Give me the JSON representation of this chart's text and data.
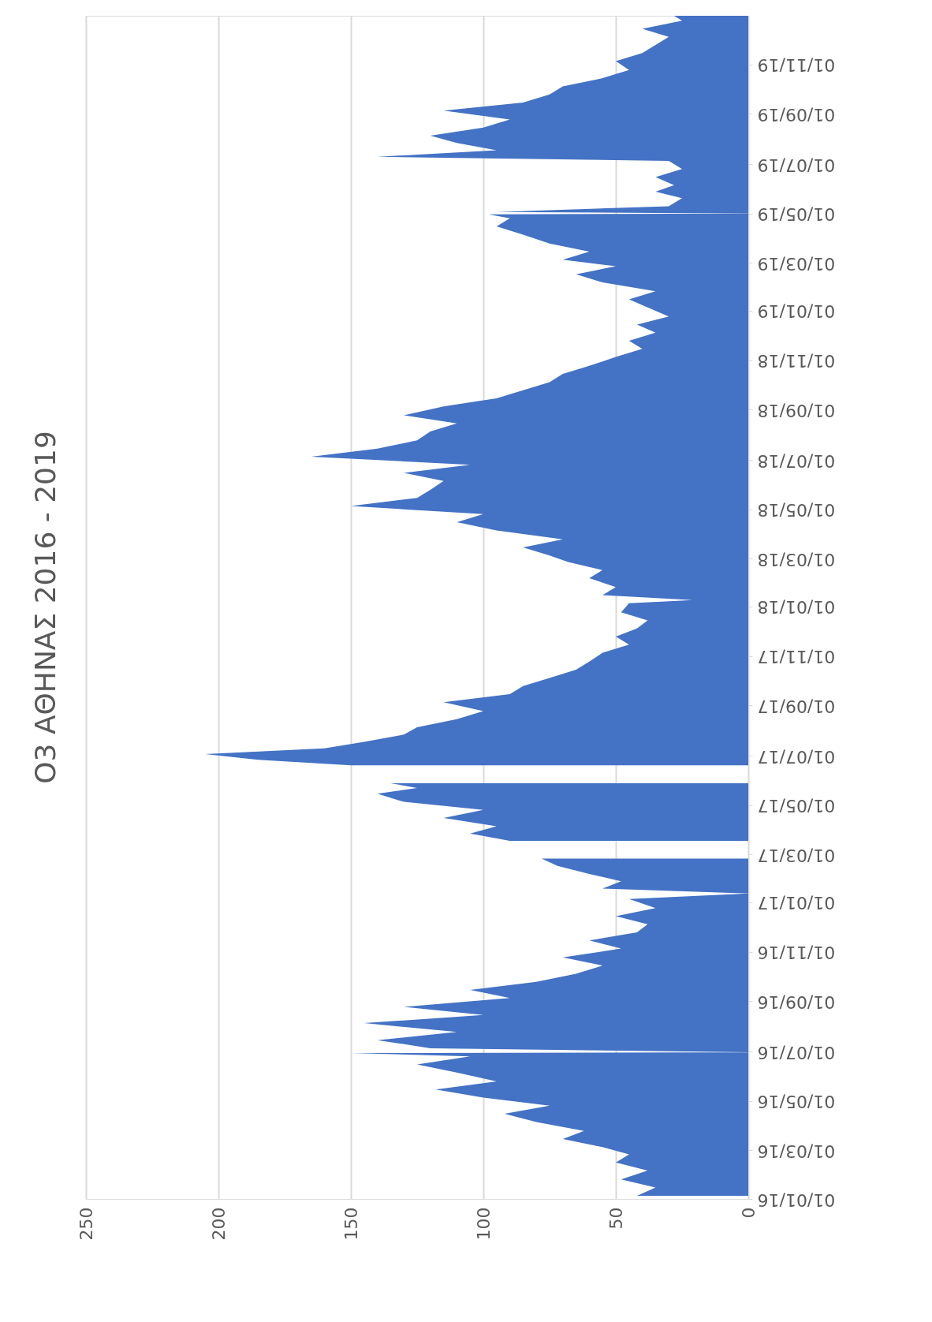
{
  "chart_data": {
    "type": "area",
    "title": "O3 ΑΘΗΝΑΣ 2016 - 2019",
    "series": [
      {
        "color": "#4472c4",
        "x": [
          "2016-01-05",
          "2016-01-15",
          "2016-01-25",
          "2016-02-05",
          "2016-02-15",
          "2016-02-25",
          "2016-03-05",
          "2016-03-15",
          "2016-03-25",
          "2016-04-05",
          "2016-04-15",
          "2016-04-25",
          "2016-05-05",
          "2016-05-15",
          "2016-05-25",
          "2016-06-05",
          "2016-06-15",
          "2016-06-25",
          "2016-06-29",
          "2016-06-30",
          "2016-07-05",
          "2016-07-15",
          "2016-07-25",
          "2016-08-05",
          "2016-08-15",
          "2016-08-25",
          "2016-09-05",
          "2016-09-15",
          "2016-09-25",
          "2016-10-05",
          "2016-10-15",
          "2016-10-25",
          "2016-11-05",
          "2016-11-15",
          "2016-11-25",
          "2016-12-05",
          "2016-12-15",
          "2016-12-25",
          "2017-01-05",
          "2017-01-12",
          "2017-01-18",
          "2017-01-27",
          "2017-02-05",
          "2017-02-15",
          "2017-02-24",
          "2017-03-05",
          "2017-03-12",
          "2017-03-18",
          "2017-03-27",
          "2017-04-05",
          "2017-04-15",
          "2017-04-25",
          "2017-05-05",
          "2017-05-15",
          "2017-05-22",
          "2017-05-28",
          "2017-06-05",
          "2017-06-12",
          "2017-06-19",
          "2017-06-26",
          "2017-07-03",
          "2017-07-10",
          "2017-07-18",
          "2017-07-27",
          "2017-08-05",
          "2017-08-15",
          "2017-08-25",
          "2017-09-05",
          "2017-09-15",
          "2017-09-25",
          "2017-10-05",
          "2017-10-15",
          "2017-10-25",
          "2017-11-05",
          "2017-11-15",
          "2017-11-25",
          "2017-12-05",
          "2017-12-15",
          "2017-12-25",
          "2018-01-05",
          "2018-01-09",
          "2018-01-15",
          "2018-01-25",
          "2018-02-05",
          "2018-02-15",
          "2018-02-25",
          "2018-03-05",
          "2018-03-15",
          "2018-03-25",
          "2018-04-05",
          "2018-04-15",
          "2018-04-25",
          "2018-05-05",
          "2018-05-15",
          "2018-05-25",
          "2018-06-05",
          "2018-06-15",
          "2018-06-25",
          "2018-07-05",
          "2018-07-15",
          "2018-07-25",
          "2018-08-05",
          "2018-08-15",
          "2018-08-25",
          "2018-09-05",
          "2018-09-15",
          "2018-09-25",
          "2018-10-05",
          "2018-10-15",
          "2018-10-25",
          "2018-11-05",
          "2018-11-15",
          "2018-11-25",
          "2018-12-05",
          "2018-12-15",
          "2018-12-25",
          "2019-01-05",
          "2019-01-15",
          "2019-01-25",
          "2019-02-05",
          "2019-02-15",
          "2019-02-25",
          "2019-03-05",
          "2019-03-15",
          "2019-03-25",
          "2019-04-05",
          "2019-04-15",
          "2019-04-25",
          "2019-04-30",
          "2019-05-01",
          "2019-05-03",
          "2019-05-10",
          "2019-05-20",
          "2019-05-28",
          "2019-06-05",
          "2019-06-15",
          "2019-06-25",
          "2019-07-05",
          "2019-07-10",
          "2019-07-18",
          "2019-07-27",
          "2019-08-05",
          "2019-08-15",
          "2019-08-25",
          "2019-09-05",
          "2019-09-15",
          "2019-09-25",
          "2019-10-05",
          "2019-10-15",
          "2019-10-25",
          "2019-11-05",
          "2019-11-15",
          "2019-11-25",
          "2019-12-05",
          "2019-12-15",
          "2019-12-25",
          "2019-12-31"
        ],
        "values": [
          42,
          35,
          48,
          38,
          50,
          45,
          55,
          70,
          62,
          80,
          92,
          75,
          100,
          118,
          95,
          110,
          125,
          105,
          150,
          0,
          120,
          140,
          110,
          145,
          100,
          130,
          90,
          105,
          80,
          65,
          55,
          70,
          48,
          60,
          42,
          38,
          50,
          35,
          45,
          0,
          55,
          48,
          60,
          72,
          78,
          null,
          null,
          90,
          105,
          95,
          115,
          100,
          130,
          140,
          125,
          135,
          null,
          null,
          150,
          185,
          205,
          160,
          145,
          130,
          125,
          110,
          100,
          115,
          90,
          85,
          75,
          65,
          60,
          55,
          45,
          50,
          42,
          38,
          48,
          45,
          21,
          55,
          50,
          60,
          55,
          68,
          75,
          85,
          70,
          95,
          110,
          100,
          150,
          125,
          120,
          115,
          130,
          105,
          165,
          140,
          125,
          120,
          110,
          130,
          115,
          95,
          85,
          75,
          70,
          60,
          50,
          40,
          45,
          35,
          42,
          30,
          38,
          45,
          35,
          55,
          65,
          50,
          70,
          60,
          75,
          85,
          95,
          90,
          98,
          0,
          95,
          30,
          25,
          35,
          28,
          35,
          25,
          30,
          140,
          95,
          110,
          120,
          100,
          90,
          115,
          85,
          75,
          70,
          55,
          45,
          50,
          40,
          35,
          30,
          40,
          25,
          28
        ]
      }
    ],
    "orientation": "horizontal",
    "ylim": [
      "2016-01-01",
      "2019-12-31"
    ],
    "yticks": [
      {
        "value": "2016-01-01",
        "label": "01/01/16"
      },
      {
        "value": "2016-03-01",
        "label": "01/03/16"
      },
      {
        "value": "2016-05-01",
        "label": "01/05/16"
      },
      {
        "value": "2016-07-01",
        "label": "01/07/16"
      },
      {
        "value": "2016-09-01",
        "label": "01/09/16"
      },
      {
        "value": "2016-11-01",
        "label": "01/11/16"
      },
      {
        "value": "2017-01-01",
        "label": "01/01/17"
      },
      {
        "value": "2017-03-01",
        "label": "01/03/17"
      },
      {
        "value": "2017-05-01",
        "label": "01/05/17"
      },
      {
        "value": "2017-07-01",
        "label": "01/07/17"
      },
      {
        "value": "2017-09-01",
        "label": "01/09/17"
      },
      {
        "value": "2017-11-01",
        "label": "01/11/17"
      },
      {
        "value": "2018-01-01",
        "label": "01/01/18"
      },
      {
        "value": "2018-03-01",
        "label": "01/03/18"
      },
      {
        "value": "2018-05-01",
        "label": "01/05/18"
      },
      {
        "value": "2018-07-01",
        "label": "01/07/18"
      },
      {
        "value": "2018-09-01",
        "label": "01/09/18"
      },
      {
        "value": "2018-11-01",
        "label": "01/11/18"
      },
      {
        "value": "2019-01-01",
        "label": "01/01/19"
      },
      {
        "value": "2019-03-01",
        "label": "01/03/19"
      },
      {
        "value": "2019-05-01",
        "label": "01/05/19"
      },
      {
        "value": "2019-07-01",
        "label": "01/07/19"
      },
      {
        "value": "2019-09-01",
        "label": "01/09/19"
      },
      {
        "value": "2019-11-01",
        "label": "01/11/19"
      }
    ],
    "xlim": [
      250,
      0
    ],
    "xticks": [
      250,
      200,
      150,
      100,
      50,
      0
    ],
    "grid": "x"
  }
}
